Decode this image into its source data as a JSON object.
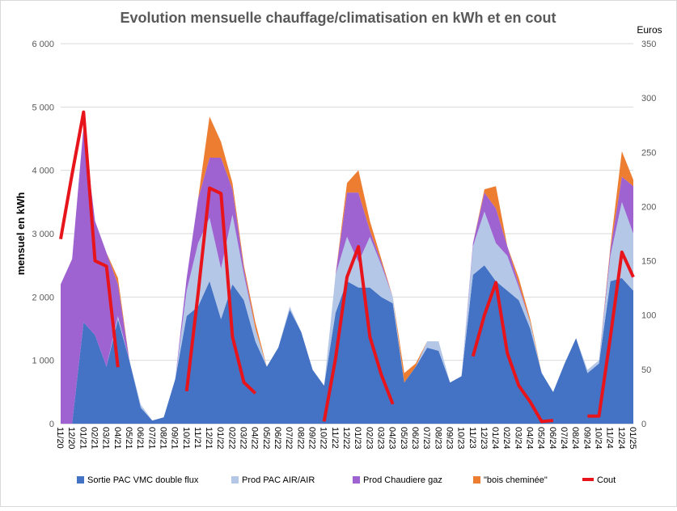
{
  "chart_data": {
    "type": "stacked_area_line",
    "title": "Evolution mensuelle chauffage/climatisation  en kWh et en cout",
    "y_label": "mensuel en kWh",
    "y2_label": "Euros",
    "categories": [
      "11/20",
      "12/20",
      "01/21",
      "02/21",
      "03/21",
      "04/21",
      "05/21",
      "06/21",
      "07/21",
      "08/21",
      "09/21",
      "10/21",
      "11/21",
      "12/21",
      "01/22",
      "02/22",
      "03/22",
      "04/22",
      "05/22",
      "06/22",
      "07/22",
      "08/22",
      "09/22",
      "10/22",
      "11/22",
      "12/22",
      "01/23",
      "02/23",
      "03/23",
      "04/23",
      "05/23",
      "06/23",
      "07/23",
      "08/23",
      "09/23",
      "10/23",
      "11/23",
      "12/23",
      "01/24",
      "02/24",
      "03/24",
      "04/24",
      "05/24",
      "06/24",
      "07/24",
      "08/24",
      "09/24",
      "10/24",
      "11/24",
      "12/24",
      "01/25"
    ],
    "ylim": [
      0,
      6000
    ],
    "yticks": [
      0,
      {
        "value": 1000,
        "label": "1 000"
      },
      {
        "value": 2000,
        "label": "2 000"
      },
      {
        "value": 3000,
        "label": "3 000"
      },
      {
        "value": 4000,
        "label": "4 000"
      },
      {
        "value": 5000,
        "label": "5 000"
      },
      {
        "value": 6000,
        "label": "6 000"
      }
    ],
    "y2lim": [
      0,
      350
    ],
    "y2ticks": [
      0,
      50,
      100,
      150,
      200,
      250,
      300,
      350
    ],
    "grid": true,
    "legend": "bottom",
    "series": [
      {
        "name": "Sortie PAC VMC double flux",
        "color": "#4472c4",
        "values": [
          0,
          0,
          1600,
          1400,
          900,
          1650,
          1000,
          250,
          50,
          100,
          700,
          1700,
          1850,
          2250,
          1650,
          2200,
          1950,
          1300,
          900,
          1200,
          1800,
          1450,
          850,
          600,
          1750,
          2250,
          2150,
          2150,
          2000,
          1900,
          650,
          900,
          1200,
          1150,
          650,
          750,
          2350,
          2500,
          2250,
          2100,
          1950,
          1500,
          800,
          500,
          950,
          1350,
          800,
          950,
          2250,
          2300,
          2100
        ]
      },
      {
        "name": "Prod PAC AIR/AIR",
        "color": "#b4c7e7",
        "values": [
          0,
          0,
          0,
          0,
          0,
          50,
          0,
          50,
          0,
          0,
          0,
          400,
          1000,
          1000,
          800,
          1100,
          400,
          200,
          0,
          0,
          50,
          0,
          0,
          0,
          600,
          700,
          400,
          800,
          500,
          100,
          0,
          0,
          100,
          150,
          0,
          0,
          450,
          850,
          600,
          550,
          200,
          100,
          0,
          0,
          0,
          0,
          50,
          50,
          400,
          1200,
          900
        ]
      },
      {
        "name": "Prod Chaudiere gaz",
        "color": "#9e63d1",
        "values": [
          2200,
          2600,
          3100,
          1800,
          1800,
          500,
          0,
          0,
          0,
          0,
          0,
          200,
          700,
          950,
          1750,
          400,
          100,
          0,
          0,
          0,
          0,
          0,
          0,
          0,
          0,
          700,
          1100,
          100,
          50,
          0,
          0,
          0,
          0,
          0,
          0,
          0,
          50,
          300,
          550,
          150,
          50,
          0,
          0,
          0,
          0,
          0,
          0,
          0,
          100,
          400,
          750
        ]
      },
      {
        "name": "\"bois cheminée\"",
        "color": "#ed7d31",
        "values": [
          0,
          0,
          0,
          0,
          0,
          100,
          0,
          0,
          0,
          0,
          0,
          0,
          0,
          650,
          250,
          100,
          50,
          100,
          0,
          0,
          0,
          0,
          0,
          0,
          0,
          150,
          350,
          150,
          50,
          0,
          150,
          50,
          0,
          0,
          0,
          0,
          0,
          50,
          350,
          0,
          100,
          50,
          0,
          0,
          0,
          0,
          0,
          0,
          50,
          400,
          100
        ]
      },
      {
        "name": "Cout",
        "color": "#e8141b",
        "axis": "y2",
        "values": [
          170,
          230,
          287,
          150,
          145,
          52,
          null,
          null,
          null,
          null,
          null,
          30,
          120,
          217,
          212,
          80,
          38,
          28,
          null,
          null,
          null,
          null,
          null,
          2,
          60,
          135,
          163,
          80,
          45,
          18,
          null,
          null,
          null,
          null,
          null,
          null,
          62,
          100,
          130,
          65,
          35,
          20,
          2,
          3,
          null,
          null,
          7,
          7,
          80,
          158,
          135
        ]
      }
    ]
  }
}
